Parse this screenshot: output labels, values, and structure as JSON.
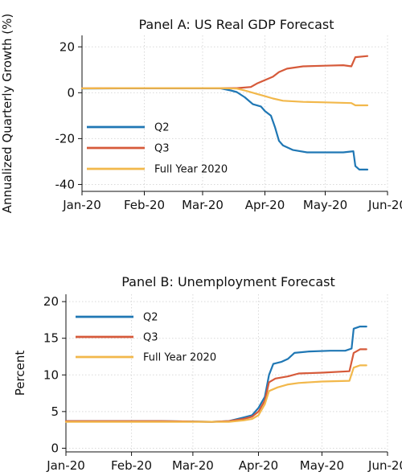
{
  "chart_data": [
    {
      "type": "line",
      "title": "Panel A: US Real GDP Forecast",
      "xlabel": "",
      "ylabel": "Annualized Quarterly Growth (%)",
      "x_ticks": [
        "Jan-20",
        "Feb-20",
        "Mar-20",
        "Apr-20",
        "May-20",
        "Jun-20"
      ],
      "y_ticks": [
        -40,
        -20,
        0,
        20
      ],
      "xlim": [
        "2020-01-01",
        "2020-06-01"
      ],
      "ylim": [
        -43,
        25
      ],
      "grid": true,
      "legend_position": "bottom-left",
      "series": [
        {
          "name": "Q2",
          "color": "#1f77b4",
          "points": [
            [
              "2020-01-01",
              1.8
            ],
            [
              "2020-01-20",
              1.9
            ],
            [
              "2020-02-15",
              1.9
            ],
            [
              "2020-03-10",
              1.9
            ],
            [
              "2020-03-15",
              1.0
            ],
            [
              "2020-03-18",
              0.3
            ],
            [
              "2020-03-22",
              -2.0
            ],
            [
              "2020-03-26",
              -5.0
            ],
            [
              "2020-03-30",
              -6.0
            ],
            [
              "2020-04-01",
              -8.0
            ],
            [
              "2020-04-04",
              -10.0
            ],
            [
              "2020-04-06",
              -15.0
            ],
            [
              "2020-04-08",
              -21.0
            ],
            [
              "2020-04-10",
              -23.0
            ],
            [
              "2020-04-15",
              -25.0
            ],
            [
              "2020-04-22",
              -26.0
            ],
            [
              "2020-05-01",
              -26.0
            ],
            [
              "2020-05-10",
              -26.0
            ],
            [
              "2020-05-15",
              -25.5
            ],
            [
              "2020-05-16",
              -32.0
            ],
            [
              "2020-05-18",
              -33.5
            ],
            [
              "2020-05-22",
              -33.5
            ]
          ]
        },
        {
          "name": "Q3",
          "color": "#d65a3a",
          "points": [
            [
              "2020-01-01",
              1.9
            ],
            [
              "2020-01-20",
              2.0
            ],
            [
              "2020-02-15",
              2.0
            ],
            [
              "2020-03-10",
              2.0
            ],
            [
              "2020-03-18",
              2.0
            ],
            [
              "2020-03-25",
              2.5
            ],
            [
              "2020-03-28",
              4.0
            ],
            [
              "2020-04-01",
              5.5
            ],
            [
              "2020-04-05",
              7.0
            ],
            [
              "2020-04-08",
              9.0
            ],
            [
              "2020-04-12",
              10.5
            ],
            [
              "2020-04-20",
              11.5
            ],
            [
              "2020-05-01",
              11.8
            ],
            [
              "2020-05-10",
              12.0
            ],
            [
              "2020-05-14",
              11.5
            ],
            [
              "2020-05-16",
              15.5
            ],
            [
              "2020-05-22",
              16.0
            ]
          ]
        },
        {
          "name": "Full Year 2020",
          "color": "#f2b84b",
          "points": [
            [
              "2020-01-01",
              1.9
            ],
            [
              "2020-01-20",
              2.0
            ],
            [
              "2020-02-15",
              2.0
            ],
            [
              "2020-03-10",
              2.0
            ],
            [
              "2020-03-18",
              1.8
            ],
            [
              "2020-03-22",
              1.0
            ],
            [
              "2020-03-28",
              -0.5
            ],
            [
              "2020-04-01",
              -1.5
            ],
            [
              "2020-04-05",
              -2.5
            ],
            [
              "2020-04-10",
              -3.5
            ],
            [
              "2020-04-20",
              -4.0
            ],
            [
              "2020-05-01",
              -4.2
            ],
            [
              "2020-05-14",
              -4.5
            ],
            [
              "2020-05-16",
              -5.5
            ],
            [
              "2020-05-22",
              -5.5
            ]
          ]
        }
      ]
    },
    {
      "type": "line",
      "title": "Panel B: Unemployment Forecast",
      "xlabel": "",
      "ylabel": "Percent",
      "x_ticks": [
        "Jan-20",
        "Feb-20",
        "Mar-20",
        "Apr-20",
        "May-20",
        "Jun-20"
      ],
      "y_ticks": [
        0,
        5,
        10,
        15,
        20
      ],
      "xlim": [
        "2020-01-01",
        "2020-06-01"
      ],
      "ylim": [
        -0.5,
        21
      ],
      "grid": true,
      "legend_position": "top-left",
      "series": [
        {
          "name": "Q2",
          "color": "#1f77b4",
          "points": [
            [
              "2020-01-01",
              3.7
            ],
            [
              "2020-02-15",
              3.7
            ],
            [
              "2020-03-10",
              3.6
            ],
            [
              "2020-03-18",
              3.7
            ],
            [
              "2020-03-25",
              4.2
            ],
            [
              "2020-03-29",
              4.5
            ],
            [
              "2020-04-01",
              5.5
            ],
            [
              "2020-04-04",
              7.0
            ],
            [
              "2020-04-06",
              10.0
            ],
            [
              "2020-04-08",
              11.5
            ],
            [
              "2020-04-12",
              11.8
            ],
            [
              "2020-04-15",
              12.2
            ],
            [
              "2020-04-18",
              13.0
            ],
            [
              "2020-04-25",
              13.2
            ],
            [
              "2020-05-05",
              13.3
            ],
            [
              "2020-05-12",
              13.3
            ],
            [
              "2020-05-15",
              13.6
            ],
            [
              "2020-05-16",
              16.3
            ],
            [
              "2020-05-19",
              16.6
            ],
            [
              "2020-05-22",
              16.6
            ]
          ]
        },
        {
          "name": "Q3",
          "color": "#d65a3a",
          "points": [
            [
              "2020-01-01",
              3.7
            ],
            [
              "2020-02-15",
              3.7
            ],
            [
              "2020-03-10",
              3.6
            ],
            [
              "2020-03-18",
              3.7
            ],
            [
              "2020-03-25",
              4.0
            ],
            [
              "2020-03-29",
              4.3
            ],
            [
              "2020-04-01",
              5.0
            ],
            [
              "2020-04-04",
              6.5
            ],
            [
              "2020-04-06",
              9.0
            ],
            [
              "2020-04-09",
              9.5
            ],
            [
              "2020-04-15",
              9.8
            ],
            [
              "2020-04-20",
              10.2
            ],
            [
              "2020-05-01",
              10.3
            ],
            [
              "2020-05-14",
              10.5
            ],
            [
              "2020-05-16",
              13.0
            ],
            [
              "2020-05-19",
              13.5
            ],
            [
              "2020-05-22",
              13.5
            ]
          ]
        },
        {
          "name": "Full Year 2020",
          "color": "#f2b84b",
          "points": [
            [
              "2020-01-01",
              3.6
            ],
            [
              "2020-02-15",
              3.6
            ],
            [
              "2020-03-10",
              3.6
            ],
            [
              "2020-03-18",
              3.6
            ],
            [
              "2020-03-25",
              3.8
            ],
            [
              "2020-03-29",
              4.0
            ],
            [
              "2020-04-01",
              4.5
            ],
            [
              "2020-04-04",
              6.0
            ],
            [
              "2020-04-06",
              7.8
            ],
            [
              "2020-04-10",
              8.3
            ],
            [
              "2020-04-15",
              8.7
            ],
            [
              "2020-04-20",
              8.9
            ],
            [
              "2020-05-01",
              9.1
            ],
            [
              "2020-05-14",
              9.2
            ],
            [
              "2020-05-16",
              11.0
            ],
            [
              "2020-05-19",
              11.3
            ],
            [
              "2020-05-22",
              11.3
            ]
          ]
        }
      ]
    }
  ]
}
